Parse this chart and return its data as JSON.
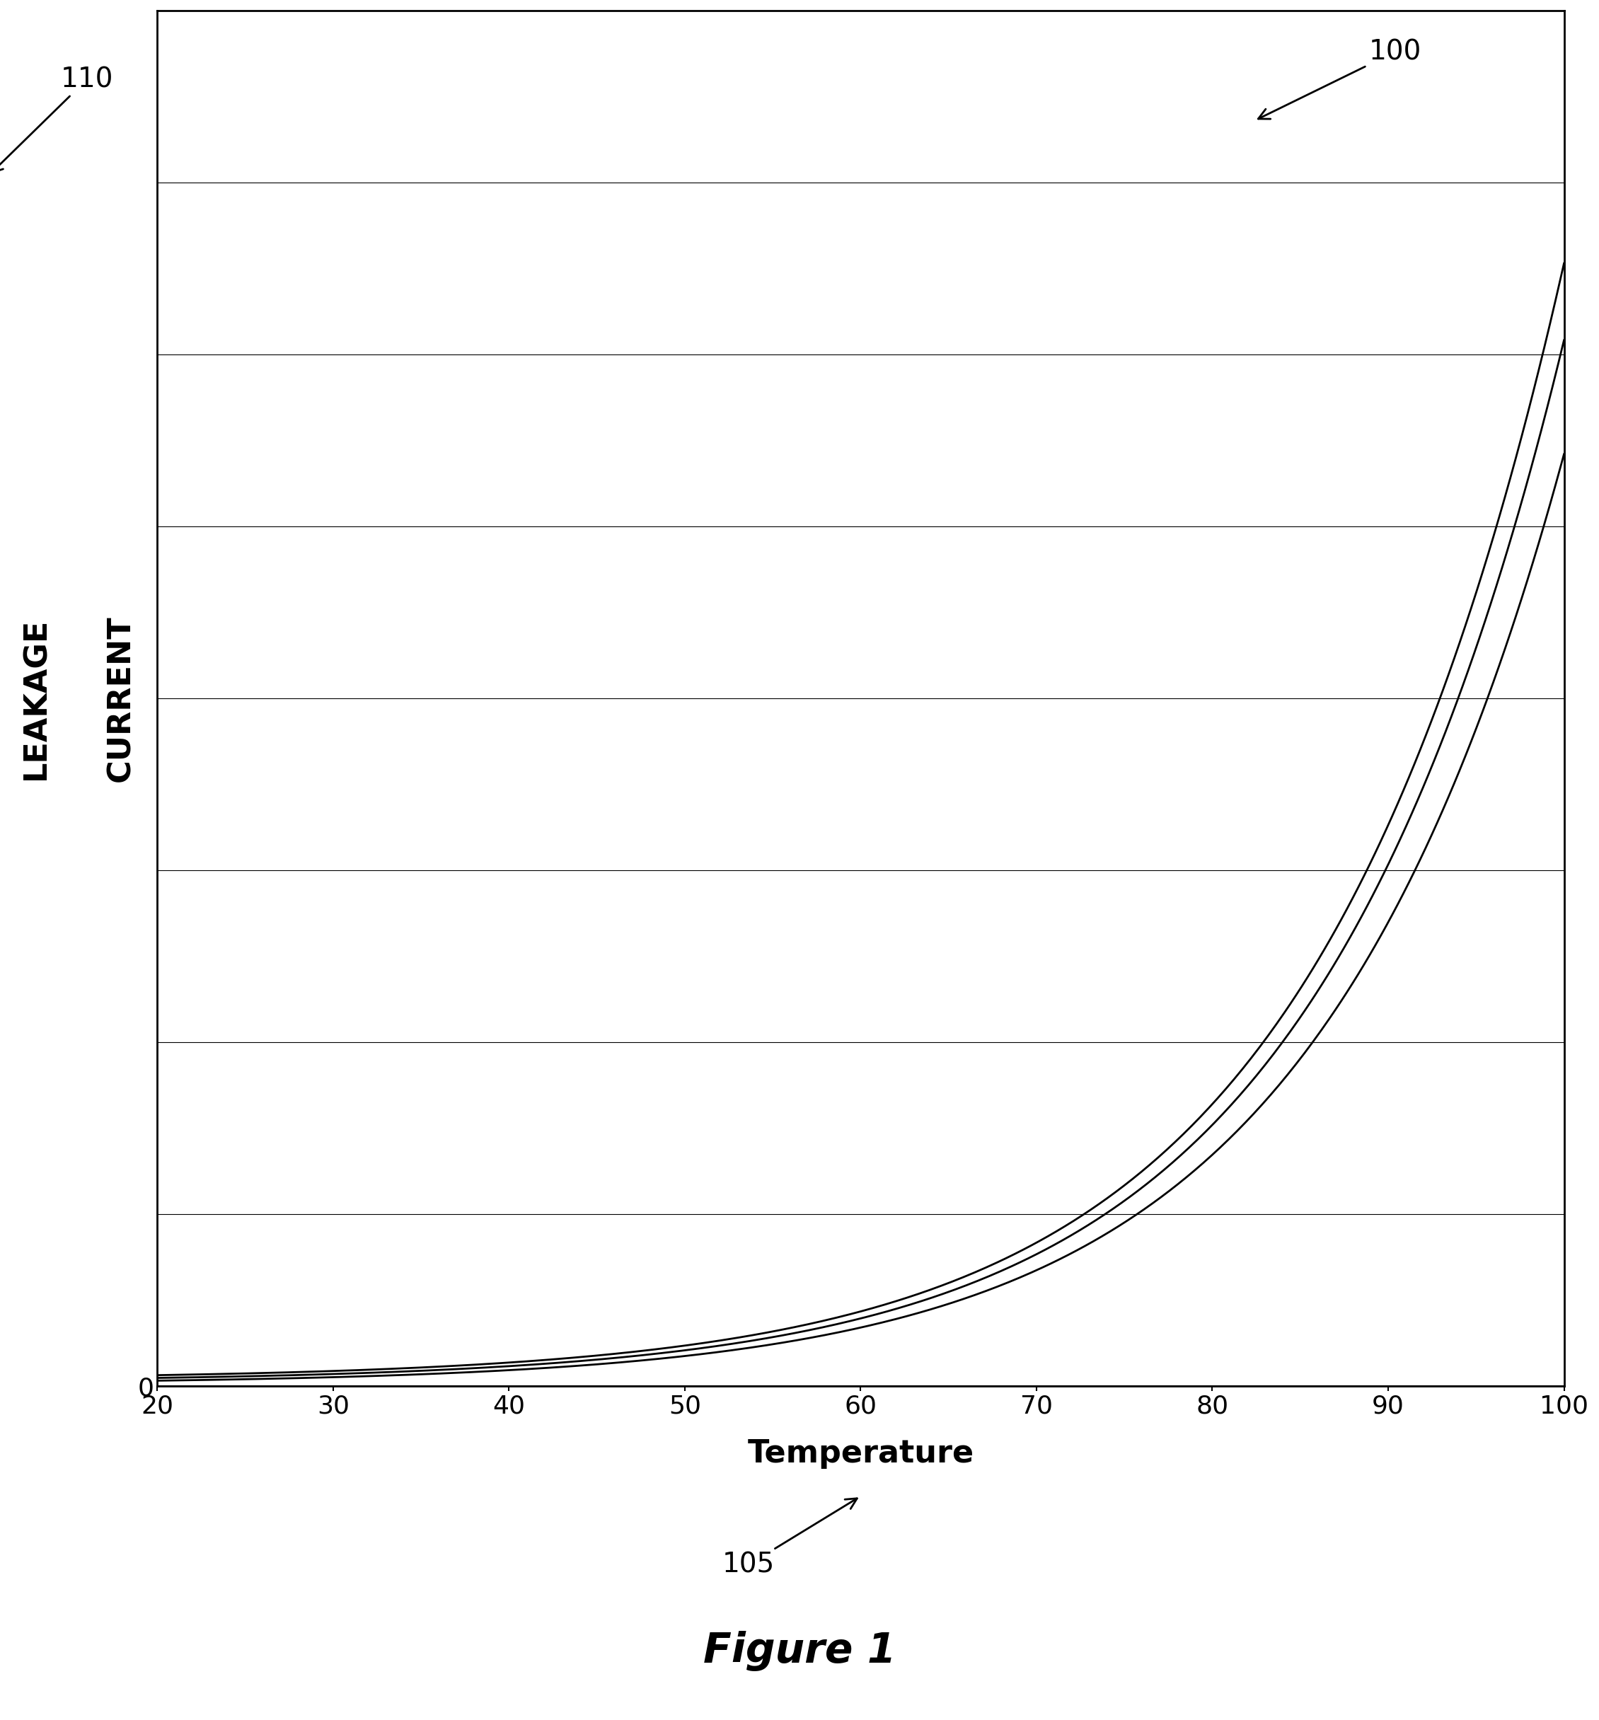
{
  "title": "Figure 1",
  "xlabel": "Temperature",
  "ylabel": "LEAKAGE\nCURRENT",
  "x_min": 20,
  "x_max": 100,
  "y_min": 0,
  "y_max": 10,
  "x_ticks": [
    20,
    30,
    40,
    50,
    60,
    70,
    80,
    90,
    100
  ],
  "y_ticks": [
    0
  ],
  "y_grid_lines": [
    1.25,
    2.5,
    3.75,
    5.0,
    6.25,
    7.5,
    8.75,
    10.0
  ],
  "curve_color": "#000000",
  "background_color": "#ffffff",
  "annotation_100": "100",
  "annotation_105": "105",
  "annotation_110": "110",
  "arrow_color": "#000000",
  "tick_fontsize": 26,
  "label_fontsize": 32,
  "title_fontsize": 42,
  "annotation_fontsize": 28
}
